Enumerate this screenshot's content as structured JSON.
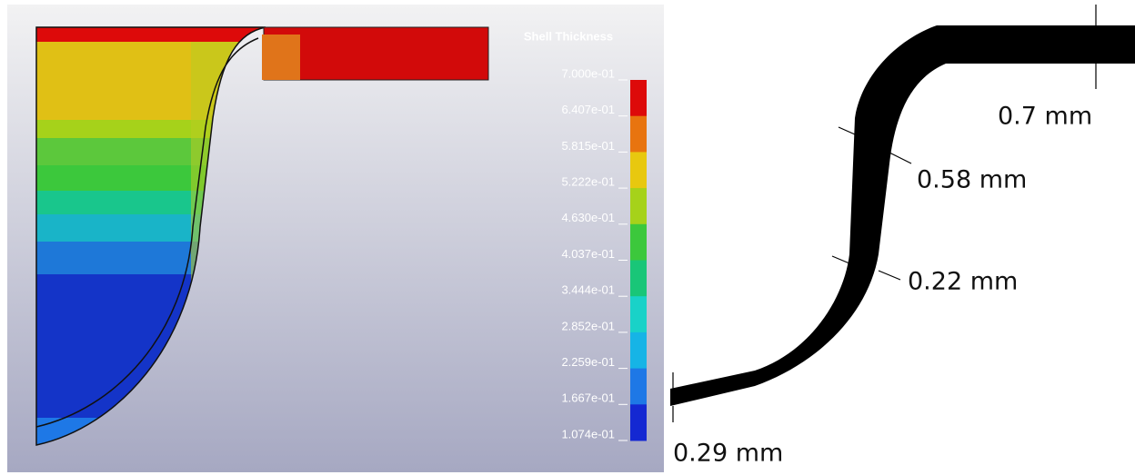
{
  "legend": {
    "title": "Shell Thickness",
    "labels": [
      "7.000e-01",
      "6.407e-01",
      "5.815e-01",
      "5.222e-01",
      "4.630e-01",
      "4.037e-01",
      "3.444e-01",
      "2.852e-01",
      "2.259e-01",
      "1.667e-01",
      "1.074e-01"
    ],
    "colors": [
      "#dd0a0a",
      "#e8740f",
      "#e8c80f",
      "#a6d21a",
      "#3cc83c",
      "#19c678",
      "#19d2c8",
      "#16b4e6",
      "#1e78e6",
      "#1428d2"
    ]
  },
  "annotations": [
    "0.7 mm",
    "0.58 mm",
    "0.22 mm",
    "0.29 mm"
  ]
}
